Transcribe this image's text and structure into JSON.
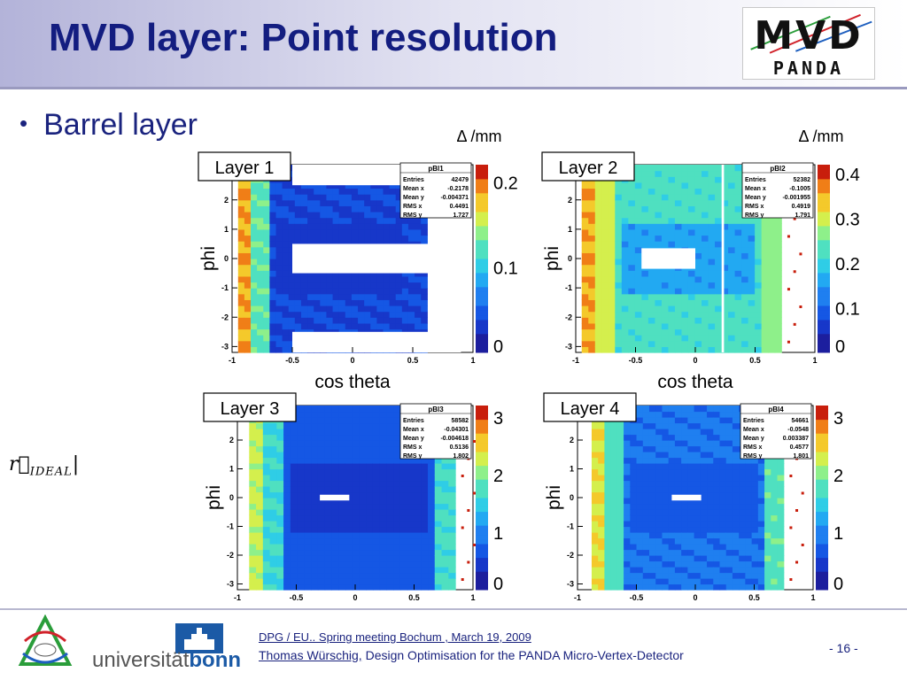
{
  "slide": {
    "title": "MVD layer: Point resolution",
    "bullet": "Barrel layer",
    "formula_main": "r⃗",
    "formula_sub": "IDEAL",
    "formula_tail": "|"
  },
  "logo": {
    "mvd": "MVD",
    "panda": "PANDA"
  },
  "footer": {
    "meeting": "DPG / EU.. Spring meeting Bochum , March 19, 2009",
    "author": "Thomas Würschig,",
    "talk": " Design Optimisation for the PANDA Micro-Vertex-Detector",
    "page": "- 16 -",
    "university_prefix": "universität",
    "university_brand": "bonn"
  },
  "colors": {
    "title": "#131d80",
    "text": "#1a237e",
    "bonn_blue": "#1b5aa6"
  },
  "chart_data": [
    {
      "type": "heatmap",
      "label": "Layer 1",
      "stats_title": "pBl1",
      "stats": [
        [
          "Entries",
          "42479"
        ],
        [
          "Mean x",
          "-0.2178"
        ],
        [
          "Mean y",
          "-0.004371"
        ],
        [
          "RMS x",
          "0.4491"
        ],
        [
          "RMS y",
          "1.727"
        ]
      ],
      "xlabel": "cos theta",
      "ylabel": "phi",
      "zunit": "Δ /mm",
      "xticks": [
        "-1",
        "-0.5",
        "0",
        "0.5",
        "1"
      ],
      "yticks": [
        "-3",
        "-2",
        "-1",
        "0",
        "1",
        "2"
      ],
      "zticks": [
        "0",
        "0.1",
        "0.2"
      ],
      "xlim": [
        -1,
        1
      ],
      "ylim": [
        -3.2,
        3.2
      ],
      "zlim": [
        0,
        0.22
      ],
      "x_extent": [
        -0.95,
        0.62
      ],
      "edge_value": 0.2,
      "body_value": 0.04,
      "inner_value": 0.03,
      "holes": [
        {
          "x": [
            -0.5,
            0.9
          ],
          "y": [
            -0.5,
            0.5
          ]
        },
        {
          "x": [
            -0.5,
            0.9
          ],
          "y": [
            2.5,
            3.2
          ]
        },
        {
          "x": [
            -0.5,
            0.9
          ],
          "y": [
            -3.2,
            -2.5
          ]
        }
      ],
      "scatter_right": false
    },
    {
      "type": "heatmap",
      "label": "Layer 2",
      "stats_title": "pBl2",
      "stats": [
        [
          "Entries",
          "52382"
        ],
        [
          "Mean x",
          "-0.1005"
        ],
        [
          "Mean y",
          "-0.001955"
        ],
        [
          "RMS x",
          "0.4919"
        ],
        [
          "RMS y",
          "1.791"
        ]
      ],
      "xlabel": "cos theta",
      "ylabel": "phi",
      "zunit": "Δ /mm",
      "xticks": [
        "-1",
        "-0.5",
        "0",
        "0.5",
        "1"
      ],
      "yticks": [
        "-3",
        "-2",
        "-1",
        "0",
        "1",
        "2"
      ],
      "zticks": [
        "0",
        "0.1",
        "0.2",
        "0.3",
        "0.4"
      ],
      "xlim": [
        -1,
        1
      ],
      "ylim": [
        -3.2,
        3.2
      ],
      "zlim": [
        0,
        0.42
      ],
      "x_extent": [
        -0.95,
        0.72
      ],
      "edge_value": 0.38,
      "body_value": 0.24,
      "inner_value": 0.16,
      "holes": [
        {
          "x": [
            -0.45,
            0.0
          ],
          "y": [
            -0.35,
            0.35
          ]
        },
        {
          "x": [
            0.22,
            0.24
          ],
          "y": [
            -3.2,
            3.2
          ]
        }
      ],
      "scatter_right": true
    },
    {
      "type": "heatmap",
      "label": "Layer 3",
      "stats_title": "pBl3",
      "stats": [
        [
          "Entries",
          "58582"
        ],
        [
          "Mean x",
          "-0.04301"
        ],
        [
          "Mean y",
          "-0.004618"
        ],
        [
          "RMS x",
          "0.5136"
        ],
        [
          "RMS y",
          "1.802"
        ]
      ],
      "xlabel": "",
      "ylabel": "phi",
      "zunit": "",
      "xticks": [
        "-1",
        "-0.5",
        "0",
        "0.5",
        "1"
      ],
      "yticks": [
        "-3",
        "-2",
        "-1",
        "0",
        "1",
        "2"
      ],
      "zticks": [
        "0",
        "1",
        "2",
        "3"
      ],
      "xlim": [
        -1,
        1
      ],
      "ylim": [
        -3.2,
        3.2
      ],
      "zlim": [
        0,
        3.2
      ],
      "x_extent": [
        -0.9,
        0.85
      ],
      "edge_value": 2.4,
      "body_value": 0.75,
      "inner_value": 0.55,
      "holes": [
        {
          "x": [
            -0.3,
            -0.05
          ],
          "y": [
            -0.1,
            0.1
          ]
        }
      ],
      "scatter_right": true
    },
    {
      "type": "heatmap",
      "label": "Layer 4",
      "stats_title": "pBl4",
      "stats": [
        [
          "Entries",
          "54661"
        ],
        [
          "Mean x",
          "-0.0548"
        ],
        [
          "Mean y",
          "0.003387"
        ],
        [
          "RMS x",
          "0.4577"
        ],
        [
          "RMS y",
          "1.801"
        ]
      ],
      "xlabel": "",
      "ylabel": "phi",
      "zunit": "",
      "xticks": [
        "-1",
        "-0.5",
        "0",
        "0.5",
        "1"
      ],
      "yticks": [
        "-3",
        "-2",
        "-1",
        "0",
        "1",
        "2"
      ],
      "zticks": [
        "0",
        "1",
        "2",
        "3"
      ],
      "xlim": [
        -1,
        1
      ],
      "ylim": [
        -3.2,
        3.2
      ],
      "zlim": [
        0,
        3.2
      ],
      "x_extent": [
        -0.88,
        0.75
      ],
      "edge_value": 2.6,
      "body_value": 0.9,
      "inner_value": 0.65,
      "holes": [
        {
          "x": [
            -0.2,
            0.05
          ],
          "y": [
            -0.1,
            0.1
          ]
        }
      ],
      "scatter_right": true
    }
  ]
}
